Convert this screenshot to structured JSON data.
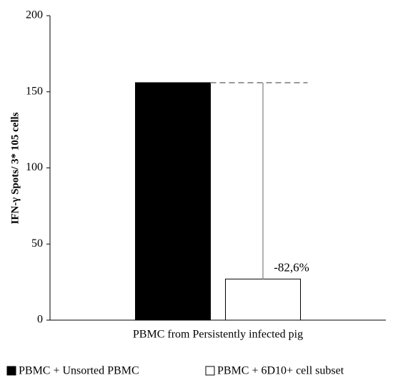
{
  "chart_data": {
    "type": "bar",
    "ylabel": "IFN-γ Spots/ 3* 105 cells",
    "categories": [
      "PBMC from Persistently infected pig"
    ],
    "series": [
      {
        "name": "PBMC + Unsorted PBMC",
        "color": "#000000",
        "values": [
          156
        ]
      },
      {
        "name": "PBMC + 6D10+ cell subset",
        "color": "#ffffff",
        "values": [
          27
        ]
      }
    ],
    "annotation": "-82,6%",
    "ylim": [
      0,
      200
    ],
    "yticks": [
      0,
      50,
      100,
      150,
      200
    ],
    "grid": false
  }
}
